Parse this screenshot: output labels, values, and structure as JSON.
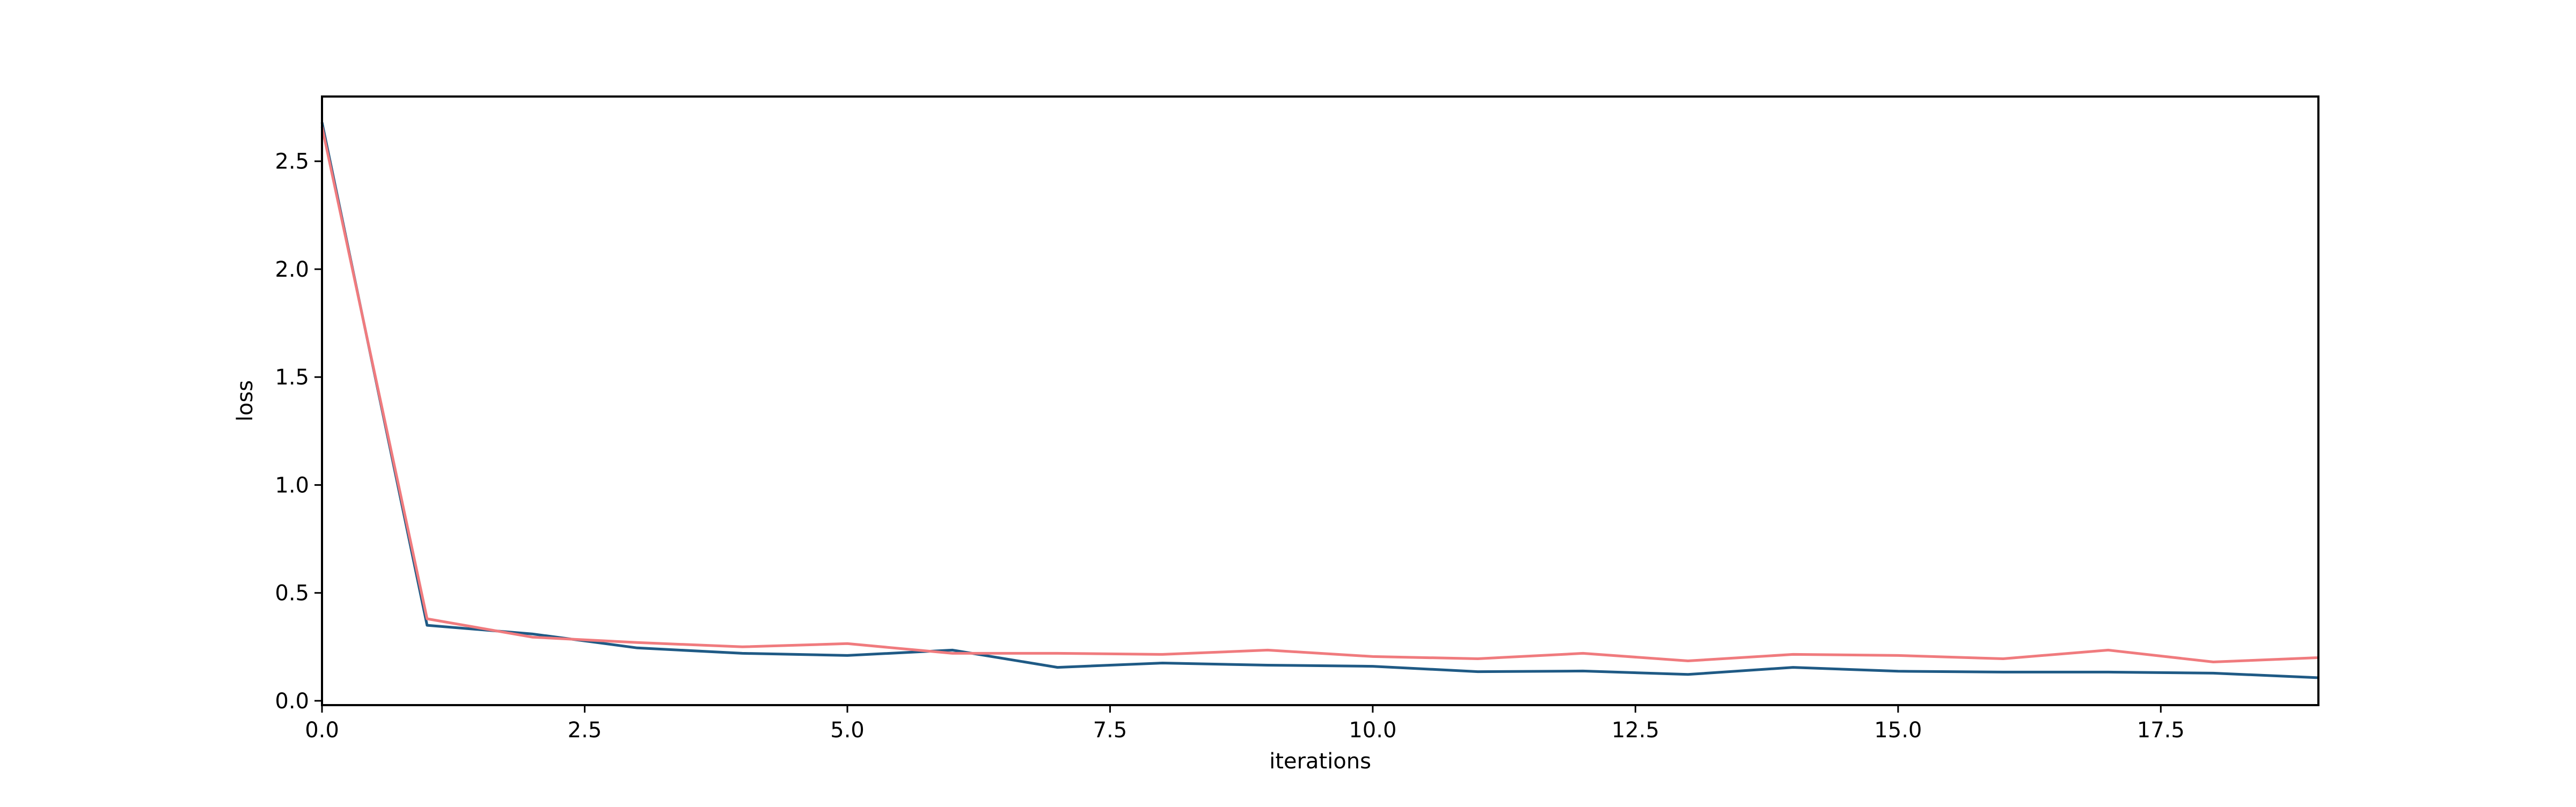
{
  "chart_data": {
    "type": "line",
    "title": "",
    "xlabel": "iterations",
    "ylabel": "loss",
    "xlim": [
      0,
      19
    ],
    "ylim": [
      -0.02,
      2.8
    ],
    "xticks": [
      0.0,
      2.5,
      5.0,
      7.5,
      10.0,
      12.5,
      15.0,
      17.5
    ],
    "xtick_labels": [
      "0.0",
      "2.5",
      "5.0",
      "7.5",
      "10.0",
      "12.5",
      "15.0",
      "17.5"
    ],
    "yticks": [
      0.0,
      0.5,
      1.0,
      1.5,
      2.0,
      2.5
    ],
    "ytick_labels": [
      "0.0",
      "0.5",
      "1.0",
      "1.5",
      "2.0",
      "2.5"
    ],
    "grid": false,
    "legend": "none",
    "x": [
      0,
      1,
      2,
      3,
      4,
      5,
      6,
      7,
      8,
      9,
      10,
      11,
      12,
      13,
      14,
      15,
      16,
      17,
      18,
      19
    ],
    "series": [
      {
        "color": "#1f5a85",
        "values": [
          2.68,
          0.35,
          0.31,
          0.245,
          0.22,
          0.21,
          0.235,
          0.155,
          0.175,
          0.165,
          0.16,
          0.135,
          0.138,
          0.122,
          0.155,
          0.137,
          0.133,
          0.133,
          0.128,
          0.107
        ]
      },
      {
        "color": "#f07b7e",
        "values": [
          2.66,
          0.38,
          0.295,
          0.27,
          0.25,
          0.265,
          0.22,
          0.22,
          0.215,
          0.235,
          0.205,
          0.195,
          0.22,
          0.185,
          0.215,
          0.21,
          0.195,
          0.235,
          0.18,
          0.2
        ]
      }
    ]
  }
}
